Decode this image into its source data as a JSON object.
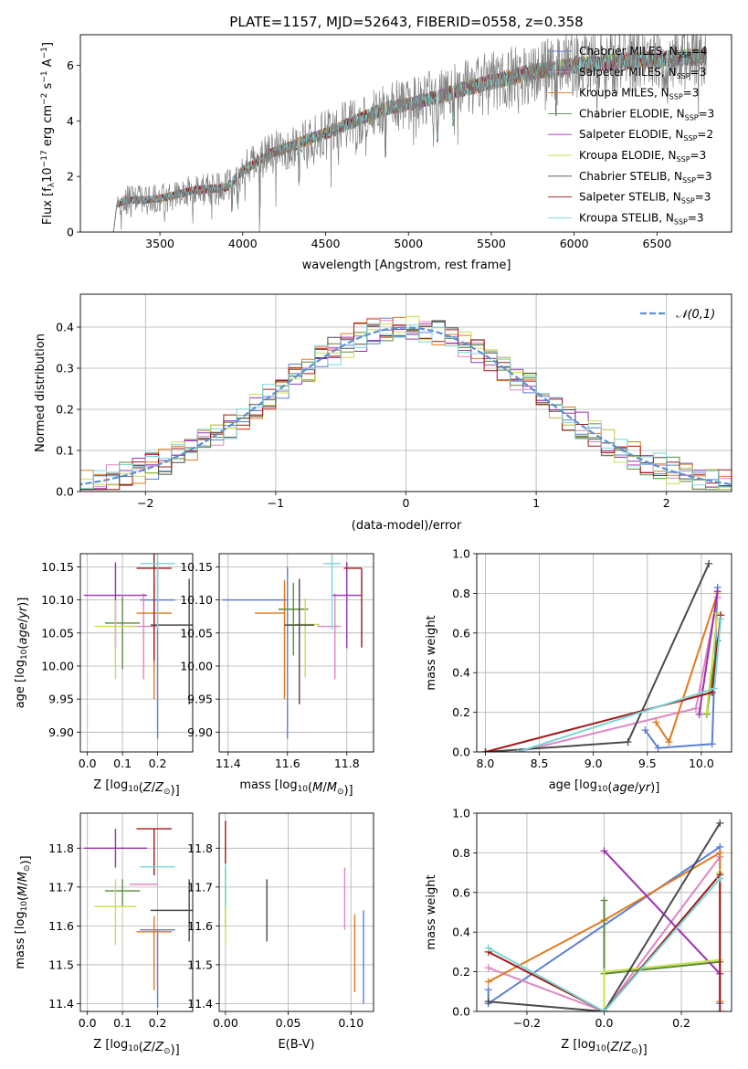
{
  "figure_title": "PLATE=1157, MJD=52643, FIBERID=0558, z=0.358",
  "colors": {
    "Chabrier MILES": "#5b7fd4",
    "Salpeter MILES": "#e085c2",
    "Kroupa MILES": "#e07a1f",
    "Chabrier ELODIE": "#5a8a3a",
    "Salpeter ELODIE": "#9b30b0",
    "Kroupa ELODIE": "#c8e050",
    "Chabrier STELIB": "#4a4a4a",
    "Salpeter STELIB": "#a01818",
    "Kroupa STELIB": "#7ad6d6",
    "normal": "#5b8fd4",
    "data": "#808080"
  },
  "chart_data": [
    {
      "id": "spectrum",
      "type": "line",
      "title": "PLATE=1157, MJD=52643, FIBERID=0558, z=0.358",
      "xlabel": "wavelength [Angstrom, rest frame]",
      "ylabel_parts": [
        "Flux [f",
        "λ",
        "10",
        "−17",
        " erg cm",
        "−2",
        " s",
        "−1",
        " A",
        "−1",
        "]"
      ],
      "xlim": [
        3020,
        6950
      ],
      "ylim": [
        0,
        7.1
      ],
      "xticks": [
        3500,
        4000,
        4500,
        5000,
        5500,
        6000,
        6500
      ],
      "yticks": [
        0,
        2,
        4,
        6
      ],
      "continuum": {
        "x": [
          3220,
          3240,
          3300,
          3400,
          3500,
          3600,
          3700,
          3800,
          3900,
          4000,
          4100,
          4200,
          4300,
          4400,
          4500,
          4600,
          4700,
          4800,
          4900,
          5000,
          5100,
          5200,
          5300,
          5400,
          5500,
          5600,
          5700,
          5800,
          5900,
          6000,
          6100,
          6200,
          6300,
          6400,
          6500,
          6600,
          6700,
          6800
        ],
        "y": [
          0,
          1.0,
          1.15,
          1.15,
          1.2,
          1.35,
          1.5,
          1.55,
          1.6,
          2.2,
          2.6,
          2.9,
          3.1,
          3.35,
          3.55,
          3.8,
          4.05,
          4.3,
          4.5,
          4.6,
          4.75,
          4.9,
          5.1,
          5.25,
          5.4,
          5.55,
          5.7,
          5.8,
          5.9,
          6.0,
          6.05,
          6.1,
          6.15,
          6.2,
          6.2,
          6.25,
          6.3,
          6.3
        ]
      },
      "legend": [
        {
          "label": "Chabrier MILES, N",
          "sub": "SSP",
          "tail": "=4",
          "color": "#5b7fd4"
        },
        {
          "label": "Salpeter MILES, N",
          "sub": "SSP",
          "tail": "=3",
          "color": "#e085c2"
        },
        {
          "label": "Kroupa MILES, N",
          "sub": "SSP",
          "tail": "=3",
          "color": "#e07a1f"
        },
        {
          "label": "Chabrier ELODIE, N",
          "sub": "SSP",
          "tail": "=3",
          "color": "#5a8a3a"
        },
        {
          "label": "Salpeter ELODIE, N",
          "sub": "SSP",
          "tail": "=2",
          "color": "#9b30b0"
        },
        {
          "label": "Kroupa ELODIE, N",
          "sub": "SSP",
          "tail": "=3",
          "color": "#c8e050"
        },
        {
          "label": "Chabrier STELIB, N",
          "sub": "SSP",
          "tail": "=3",
          "color": "#4a4a4a"
        },
        {
          "label": "Salpeter STELIB, N",
          "sub": "SSP",
          "tail": "=3",
          "color": "#a01818"
        },
        {
          "label": "Kroupa STELIB, N",
          "sub": "SSP",
          "tail": "=3",
          "color": "#7ad6d6"
        }
      ]
    },
    {
      "id": "residuals",
      "type": "histogram",
      "xlabel": "(data-model)/error",
      "ylabel": "Normed distribution",
      "xlim": [
        -2.5,
        2.5
      ],
      "ylim": [
        0,
        0.48
      ],
      "xticks": [
        -2,
        -1,
        0,
        1,
        2
      ],
      "yticks": [
        0.0,
        0.1,
        0.2,
        0.3,
        0.4
      ],
      "bin_width": 0.1,
      "legend_label": "𝒩(0,1)"
    },
    {
      "id": "age_vs_Z",
      "type": "scatter",
      "xlabel": "Z [log10(Z/Z⊙)]",
      "ylabel": "age  [log10(age/yr)]",
      "xlim": [
        -0.02,
        0.3
      ],
      "ylim": [
        9.87,
        10.17
      ],
      "xticks": [
        0.0,
        0.1,
        0.2
      ],
      "yticks": [
        9.9,
        9.95,
        10.0,
        10.05,
        10.1,
        10.15
      ],
      "points": [
        {
          "c": "Chabrier MILES",
          "x": 0.2,
          "xerr": 0.05,
          "y": 10.1,
          "yerr": [
            0.21,
            0.05
          ]
        },
        {
          "c": "Salpeter MILES",
          "x": 0.16,
          "xerr": 0.04,
          "y": 10.06,
          "yerr": [
            0.08,
            0.05
          ]
        },
        {
          "c": "Kroupa MILES",
          "x": 0.19,
          "xerr": 0.05,
          "y": 10.08,
          "yerr": [
            0.13,
            0.05
          ]
        },
        {
          "c": "Chabrier ELODIE",
          "x": 0.1,
          "xerr": 0.05,
          "y": 10.065,
          "yerr": [
            0.07,
            0.04
          ]
        },
        {
          "c": "Salpeter ELODIE",
          "x": 0.08,
          "xerr": 0.09,
          "y": 10.107,
          "yerr": [
            0.08,
            0.05
          ]
        },
        {
          "c": "Kroupa ELODIE",
          "x": 0.08,
          "xerr": 0.06,
          "y": 10.06,
          "yerr": [
            0.08,
            0.04
          ]
        },
        {
          "c": "Chabrier STELIB",
          "x": 0.29,
          "xerr": 0.11,
          "y": 10.062,
          "yerr": [
            0.12,
            0.07
          ]
        },
        {
          "c": "Salpeter STELIB",
          "x": 0.19,
          "xerr": 0.05,
          "y": 10.148,
          "yerr": [
            0.14,
            0.03
          ]
        },
        {
          "c": "Kroupa STELIB",
          "x": 0.2,
          "xerr": 0.05,
          "y": 10.155,
          "yerr": [
            0.1,
            0.03
          ]
        }
      ]
    },
    {
      "id": "age_vs_mass",
      "type": "scatter",
      "xlabel": "mass [log10(M/M⊙)]",
      "xlim": [
        11.37,
        11.89
      ],
      "ylim": [
        9.87,
        10.17
      ],
      "xticks": [
        11.4,
        11.6,
        11.8
      ],
      "yticks": [
        9.9,
        9.95,
        10.0,
        10.05,
        10.1,
        10.15
      ],
      "points": [
        {
          "c": "Chabrier MILES",
          "x": 11.6,
          "xerr": [
            0.22,
            0.0
          ],
          "y": 10.1,
          "yerr": [
            0.21,
            0.05
          ]
        },
        {
          "c": "Salpeter MILES",
          "x": 11.76,
          "xerr": [
            0.06,
            0.02
          ],
          "y": 10.06,
          "yerr": [
            0.08,
            0.05
          ]
        },
        {
          "c": "Kroupa MILES",
          "x": 11.59,
          "xerr": [
            0.1,
            0.0
          ],
          "y": 10.08,
          "yerr": [
            0.13,
            0.05
          ]
        },
        {
          "c": "Chabrier ELODIE",
          "x": 11.62,
          "xerr": 0.05,
          "y": 10.086,
          "yerr": [
            0.07,
            0.04
          ]
        },
        {
          "c": "Salpeter ELODIE",
          "x": 11.8,
          "xerr": 0.05,
          "y": 10.107,
          "yerr": [
            0.08,
            0.05
          ]
        },
        {
          "c": "Kroupa ELODIE",
          "x": 11.66,
          "xerr": 0.05,
          "y": 10.063,
          "yerr": [
            0.08,
            0.04
          ]
        },
        {
          "c": "Chabrier STELIB",
          "x": 11.64,
          "xerr": 0.05,
          "y": 10.062,
          "yerr": [
            0.12,
            0.07
          ]
        },
        {
          "c": "Salpeter STELIB",
          "x": 11.85,
          "xerr": [
            0.06,
            0.0
          ],
          "y": 10.148,
          "yerr": [
            0.12,
            0.0
          ]
        },
        {
          "c": "Kroupa STELIB",
          "x": 11.75,
          "xerr": 0.03,
          "y": 10.155,
          "yerr": [
            0.1,
            0.03
          ]
        }
      ]
    },
    {
      "id": "massweight_vs_age",
      "type": "line",
      "xlabel": "age  [log10(age/yr)]",
      "ylabel": "mass weight",
      "xlim": [
        7.92,
        10.28
      ],
      "ylim": [
        0,
        1
      ],
      "xticks": [
        8.0,
        8.5,
        9.0,
        9.5,
        10.0
      ],
      "yticks": [
        0.0,
        0.2,
        0.4,
        0.6,
        0.8,
        1.0
      ],
      "series": [
        {
          "c": "Chabrier MILES",
          "x": [
            9.48,
            9.6,
            10.1,
            10.15
          ],
          "y": [
            0.11,
            0.02,
            0.04,
            0.83
          ]
        },
        {
          "c": "Salpeter MILES",
          "x": [
            8.3,
            9.95,
            10.15
          ],
          "y": [
            0.0,
            0.22,
            0.78
          ]
        },
        {
          "c": "Kroupa MILES",
          "x": [
            9.58,
            9.7,
            10.15
          ],
          "y": [
            0.15,
            0.05,
            0.8
          ]
        },
        {
          "c": "Chabrier ELODIE",
          "x": [
            10.05,
            10.15
          ],
          "y": [
            0.19,
            0.56
          ]
        },
        {
          "c": "Salpeter ELODIE",
          "x": [
            9.98,
            10.15
          ],
          "y": [
            0.19,
            0.81
          ]
        },
        {
          "c": "Kroupa ELODIE",
          "x": [
            10.05,
            10.15
          ],
          "y": [
            0.2,
            0.7
          ]
        },
        {
          "c": "Chabrier STELIB",
          "x": [
            8.0,
            9.32,
            10.07
          ],
          "y": [
            0.0,
            0.05,
            0.95
          ]
        },
        {
          "c": "Salpeter STELIB",
          "x": [
            8.0,
            10.1,
            10.18
          ],
          "y": [
            0.0,
            0.3,
            0.69
          ]
        },
        {
          "c": "Kroupa STELIB",
          "x": [
            8.3,
            10.12,
            10.18
          ],
          "y": [
            0.0,
            0.32,
            0.67
          ]
        }
      ]
    },
    {
      "id": "mass_vs_Z",
      "type": "scatter",
      "xlabel": "Z [log10(Z/Z⊙)]",
      "ylabel": "mass [log10(M/M⊙)]",
      "xlim": [
        -0.02,
        0.3
      ],
      "ylim": [
        11.38,
        11.89
      ],
      "xticks": [
        0.0,
        0.1,
        0.2
      ],
      "yticks": [
        11.4,
        11.5,
        11.6,
        11.7,
        11.8
      ],
      "points": [
        {
          "c": "Chabrier MILES",
          "x": 0.2,
          "xerr": 0.05,
          "y": 11.59,
          "yerr": [
            0.2,
            0.0
          ]
        },
        {
          "c": "Salpeter MILES",
          "x": 0.16,
          "xerr": 0.04,
          "y": 11.707,
          "yerr": [
            0.0,
            0.0
          ]
        },
        {
          "c": "Kroupa MILES",
          "x": 0.19,
          "xerr": 0.05,
          "y": 11.585,
          "yerr": [
            0.15,
            0.04
          ]
        },
        {
          "c": "Chabrier ELODIE",
          "x": 0.1,
          "xerr": 0.05,
          "y": 11.69,
          "yerr": [
            0.04,
            0.03
          ]
        },
        {
          "c": "Salpeter ELODIE",
          "x": 0.08,
          "xerr": 0.09,
          "y": 11.8,
          "yerr": [
            0.05,
            0.05
          ]
        },
        {
          "c": "Kroupa ELODIE",
          "x": 0.08,
          "xerr": 0.06,
          "y": 11.65,
          "yerr": [
            0.1,
            0.07
          ]
        },
        {
          "c": "Chabrier STELIB",
          "x": 0.29,
          "xerr": 0.11,
          "y": 11.64,
          "yerr": [
            0.08,
            0.08
          ]
        },
        {
          "c": "Salpeter STELIB",
          "x": 0.19,
          "xerr": 0.05,
          "y": 11.85,
          "yerr": [
            0.12,
            0.0
          ]
        },
        {
          "c": "Kroupa STELIB",
          "x": 0.2,
          "xerr": 0.05,
          "y": 11.752,
          "yerr": [
            0.0,
            0.0
          ]
        }
      ]
    },
    {
      "id": "mass_vs_ebv",
      "type": "scatter",
      "xlabel": "E(B-V)",
      "xlim": [
        -0.005,
        0.118
      ],
      "ylim": [
        11.38,
        11.89
      ],
      "xticks": [
        0.0,
        0.05,
        0.1
      ],
      "xticklabels": [
        "0.00",
        "0.05",
        "0.10"
      ],
      "yticks": [
        11.4,
        11.5,
        11.6,
        11.7,
        11.8
      ],
      "points": [
        {
          "c": "Chabrier MILES",
          "x": 0.11,
          "y": 11.6,
          "yerr": [
            0.2,
            0.04
          ]
        },
        {
          "c": "Salpeter MILES",
          "x": 0.095,
          "y": 11.65,
          "yerr": [
            0.06,
            0.1
          ]
        },
        {
          "c": "Kroupa MILES",
          "x": 0.103,
          "y": 11.53,
          "yerr": [
            0.1,
            0.1
          ]
        },
        {
          "c": "Chabrier ELODIE",
          "x": 0.0,
          "y": 11.7,
          "yerr": [
            0.1,
            0.05
          ]
        },
        {
          "c": "Salpeter ELODIE",
          "x": 0.0,
          "y": 11.8,
          "yerr": [
            0.0,
            0.0
          ]
        },
        {
          "c": "Kroupa ELODIE",
          "x": 0.0,
          "y": 11.62,
          "yerr": [
            0.07,
            0.04
          ]
        },
        {
          "c": "Chabrier STELIB",
          "x": 0.033,
          "y": 11.64,
          "yerr": [
            0.08,
            0.08
          ]
        },
        {
          "c": "Salpeter STELIB",
          "x": 0.0,
          "y": 11.8,
          "yerr": [
            0.04,
            0.07
          ]
        },
        {
          "c": "Kroupa STELIB",
          "x": 0.0,
          "y": 11.7,
          "yerr": [
            0.05,
            0.06
          ]
        }
      ]
    },
    {
      "id": "massweight_vs_Z",
      "type": "line",
      "xlabel": "Z [log10(Z/Z⊙)]",
      "ylabel": "mass weight",
      "xlim": [
        -0.33,
        0.33
      ],
      "ylim": [
        0,
        1
      ],
      "xticks": [
        -0.2,
        0.0,
        0.2
      ],
      "xticklabels": [
        "−0.2",
        "0.0",
        "0.2"
      ],
      "yticks": [
        0.0,
        0.2,
        0.4,
        0.6,
        0.8,
        1.0
      ],
      "series": [
        {
          "c": "Chabrier MILES",
          "x": [
            -0.3,
            -0.3,
            0.3,
            0.3
          ],
          "y": [
            0.11,
            0.04,
            0.83,
            0.04
          ]
        },
        {
          "c": "Salpeter MILES",
          "x": [
            -0.3,
            0.0,
            0.3
          ],
          "y": [
            0.22,
            0.0,
            0.78
          ]
        },
        {
          "c": "Kroupa MILES",
          "x": [
            -0.3,
            0.0,
            0.3,
            0.3
          ],
          "y": [
            0.15,
            0.46,
            0.8,
            0.05
          ]
        },
        {
          "c": "Chabrier ELODIE",
          "x": [
            0.0,
            0.0,
            0.3
          ],
          "y": [
            0.56,
            0.19,
            0.25
          ]
        },
        {
          "c": "Salpeter ELODIE",
          "x": [
            0.0,
            0.3
          ],
          "y": [
            0.81,
            0.19
          ]
        },
        {
          "c": "Kroupa ELODIE",
          "x": [
            0.0,
            0.0,
            0.3,
            0.3
          ],
          "y": [
            0.0,
            0.2,
            0.26,
            0.7
          ]
        },
        {
          "c": "Chabrier STELIB",
          "x": [
            -0.3,
            0.0,
            0.3
          ],
          "y": [
            0.05,
            0.0,
            0.95
          ]
        },
        {
          "c": "Salpeter STELIB",
          "x": [
            -0.3,
            0.0,
            0.3,
            0.3
          ],
          "y": [
            0.3,
            0.0,
            0.69,
            0.0
          ]
        },
        {
          "c": "Kroupa STELIB",
          "x": [
            -0.3,
            0.0,
            0.3
          ],
          "y": [
            0.32,
            0.0,
            0.67
          ]
        }
      ]
    }
  ]
}
